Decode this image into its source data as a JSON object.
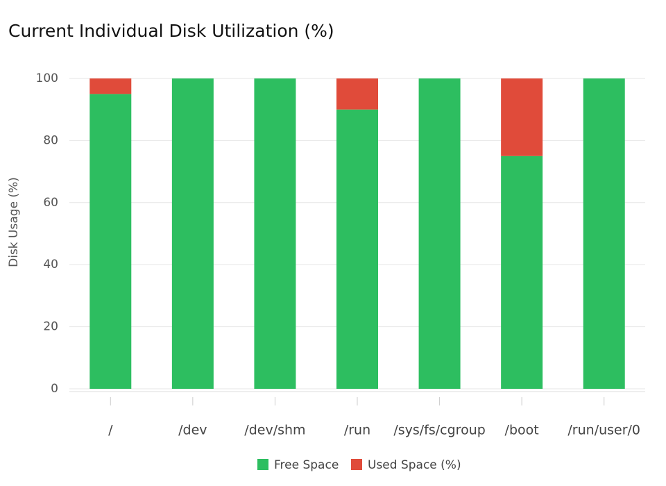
{
  "chart_data": {
    "type": "stacked_bar",
    "title": "Current Individual Disk Utilization (%)",
    "ylabel": "Disk Usage (%)",
    "categories": [
      "/",
      "/dev",
      "/dev/shm",
      "/run",
      "/sys/fs/cgroup",
      "/boot",
      "/run/user/0"
    ],
    "series": [
      {
        "name": "Free Space",
        "color": "#2dbe60",
        "values": [
          95,
          100,
          100,
          90,
          100,
          75,
          100
        ]
      },
      {
        "name": "Used Space (%)",
        "color": "#e04b3a",
        "values": [
          5,
          0,
          0,
          10,
          0,
          25,
          0
        ]
      }
    ],
    "ylim": [
      0,
      100
    ],
    "yticks": [
      0,
      20,
      40,
      60,
      80,
      100
    ],
    "grid": true,
    "legend": "bottom"
  }
}
